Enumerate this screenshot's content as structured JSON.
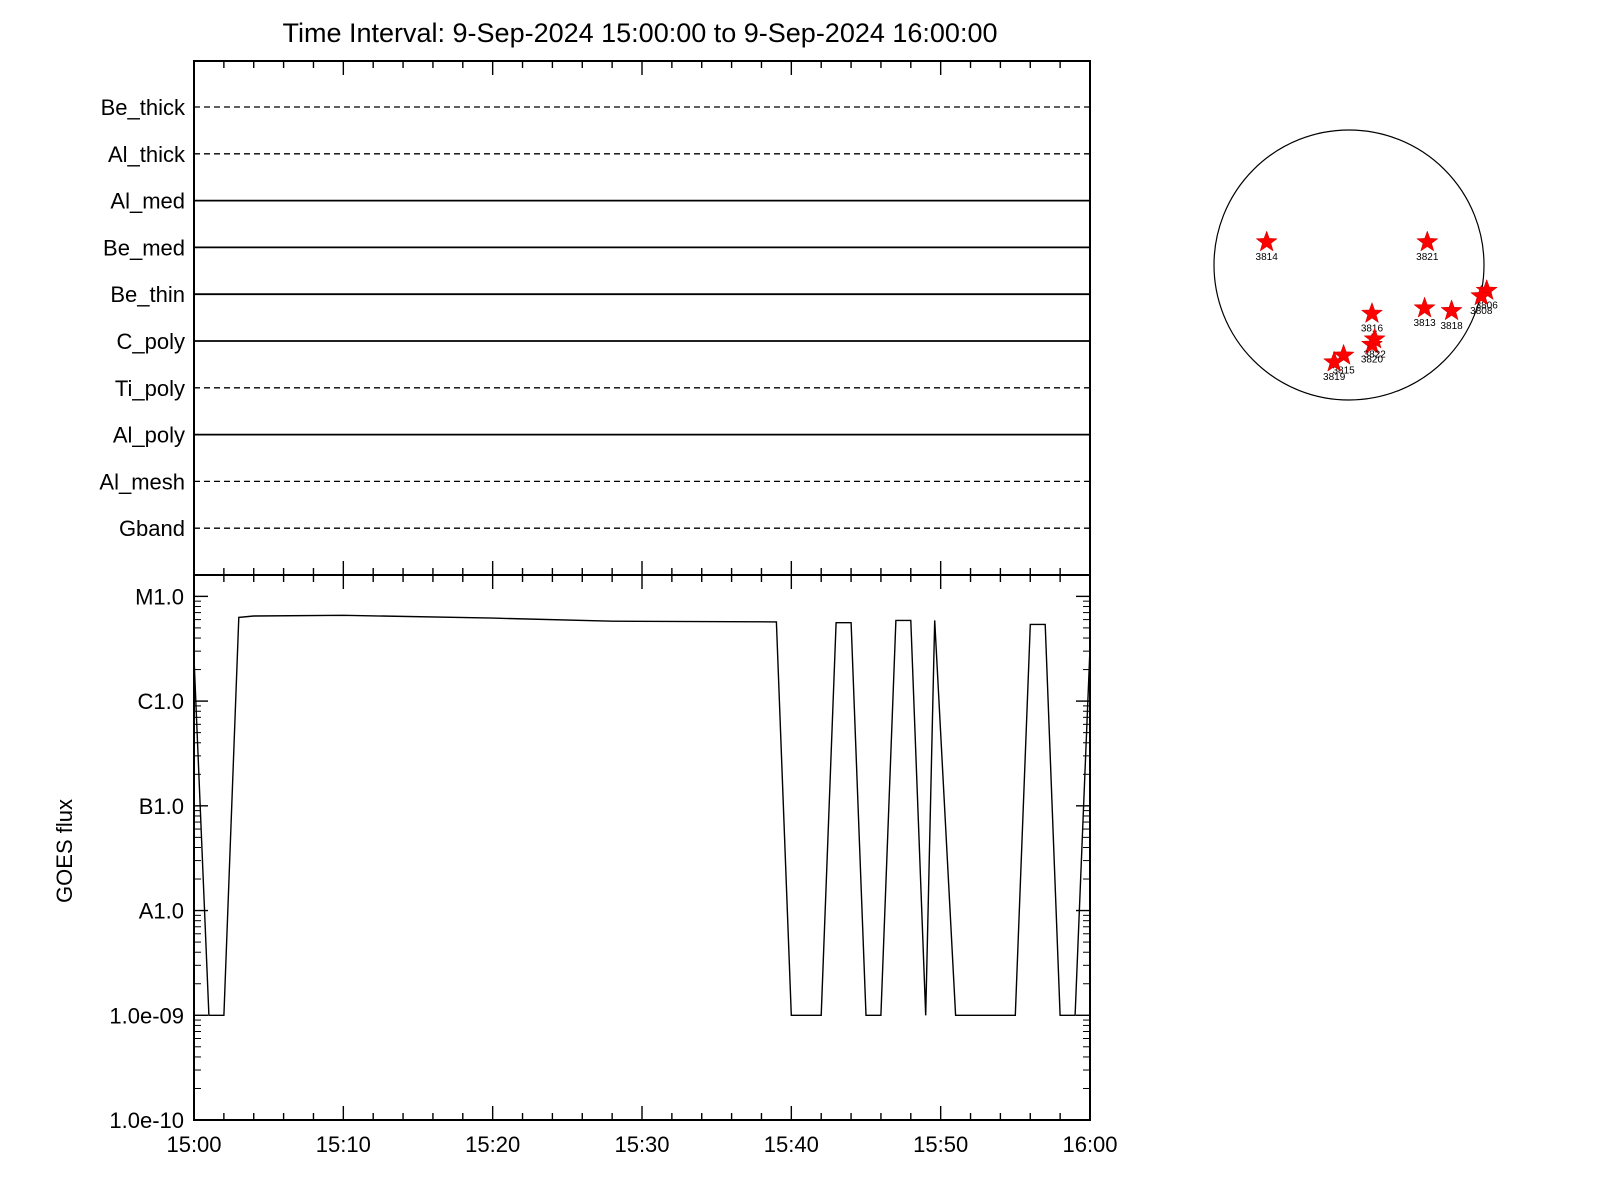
{
  "title": "Time Interval:  9-Sep-2024 15:00:00 to  9-Sep-2024 16:00:00",
  "chart_data": [
    {
      "type": "line",
      "panel": "rhessi-channels",
      "x_domain_minutes": [
        0,
        60
      ],
      "channels": [
        {
          "name": "Be_thick",
          "style": "dashed"
        },
        {
          "name": "Al_thick",
          "style": "dashed"
        },
        {
          "name": "Al_med",
          "style": "solid"
        },
        {
          "name": "Be_med",
          "style": "solid"
        },
        {
          "name": "Be_thin",
          "style": "solid"
        },
        {
          "name": "C_poly",
          "style": "solid"
        },
        {
          "name": "Ti_poly",
          "style": "dashed"
        },
        {
          "name": "Al_poly",
          "style": "solid"
        },
        {
          "name": "Al_mesh",
          "style": "dashed"
        },
        {
          "name": "Gband",
          "style": "dashed"
        }
      ]
    },
    {
      "type": "line",
      "panel": "goes-flux",
      "ylabel": "GOES flux",
      "yscale": "log",
      "ylim": [
        1e-10,
        1.6e-05
      ],
      "xlim": [
        "15:00",
        "16:00"
      ],
      "x_ticks": [
        "15:00",
        "15:10",
        "15:20",
        "15:30",
        "15:40",
        "15:50",
        "16:00"
      ],
      "y_ticks": [
        {
          "label": "M1.0",
          "value": 1e-05
        },
        {
          "label": "C1.0",
          "value": 1e-06
        },
        {
          "label": "B1.0",
          "value": 1e-07
        },
        {
          "label": "A1.0",
          "value": 1e-08
        },
        {
          "label": "1.0e-09",
          "value": 1e-09
        },
        {
          "label": "1.0e-10",
          "value": 1e-10
        }
      ],
      "series": [
        {
          "values": [
            [
              0.0,
              2.6e-06
            ],
            [
              1.0,
              1e-09
            ],
            [
              2.0,
              1e-09
            ],
            [
              3.0,
              6.3e-06
            ],
            [
              4.0,
              6.5e-06
            ],
            [
              10.0,
              6.6e-06
            ],
            [
              20.0,
              6.2e-06
            ],
            [
              28.0,
              5.8e-06
            ],
            [
              39.0,
              5.7e-06
            ],
            [
              40.0,
              1e-09
            ],
            [
              42.0,
              1e-09
            ],
            [
              43.0,
              5.6e-06
            ],
            [
              44.0,
              5.6e-06
            ],
            [
              45.0,
              1e-09
            ],
            [
              46.0,
              1e-09
            ],
            [
              47.0,
              5.9e-06
            ],
            [
              48.0,
              5.9e-06
            ],
            [
              49.0,
              1e-09
            ],
            [
              49.6,
              5.9e-06
            ],
            [
              51.0,
              1e-09
            ],
            [
              55.0,
              1e-09
            ],
            [
              56.0,
              5.4e-06
            ],
            [
              57.0,
              5.4e-06
            ],
            [
              58.0,
              1e-09
            ],
            [
              59.0,
              1e-09
            ],
            [
              60.0,
              3.2e-06
            ]
          ]
        }
      ]
    },
    {
      "type": "scatter",
      "panel": "active-regions",
      "points": [
        {
          "label": "3814",
          "x": -0.61,
          "y": 0.17
        },
        {
          "label": "3821",
          "x": 0.58,
          "y": 0.17
        },
        {
          "label": "3816",
          "x": 0.17,
          "y": -0.36
        },
        {
          "label": "3813",
          "x": 0.56,
          "y": -0.32
        },
        {
          "label": "3818",
          "x": 0.76,
          "y": -0.34
        },
        {
          "label": "3806",
          "x": 1.02,
          "y": -0.19
        },
        {
          "label": "3808",
          "x": 0.98,
          "y": -0.23
        },
        {
          "label": "3820",
          "x": 0.17,
          "y": -0.59
        },
        {
          "label": "3822",
          "x": 0.19,
          "y": -0.55
        },
        {
          "label": "3815",
          "x": -0.04,
          "y": -0.67
        },
        {
          "label": "3819",
          "x": -0.11,
          "y": -0.72
        }
      ]
    }
  ]
}
